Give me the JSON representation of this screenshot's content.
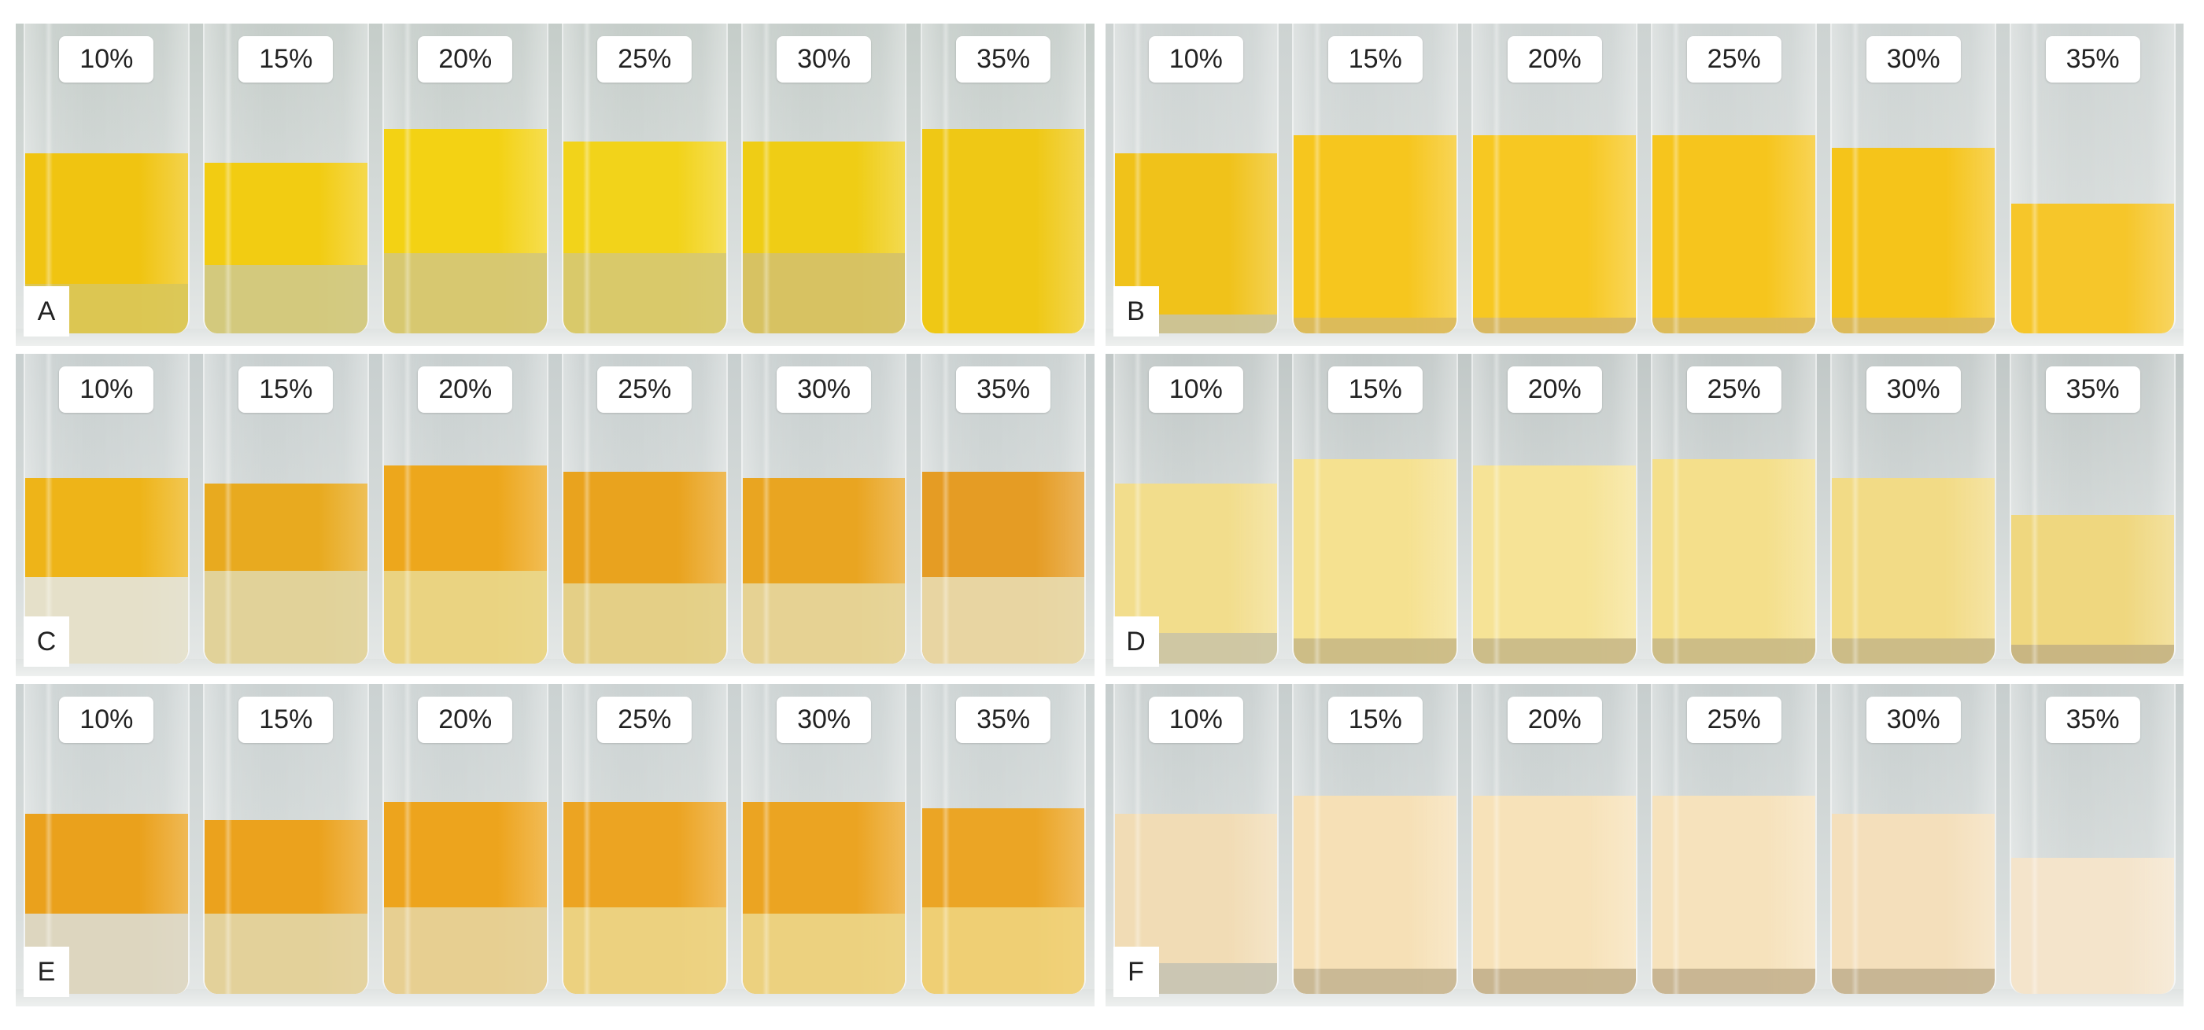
{
  "panels": [
    {
      "letter": "A",
      "bg": "#c5cdc9",
      "vials": [
        {
          "label": "10%",
          "liquid": "#f0c411",
          "sediment": "#d9c75a",
          "liquid_frac": 0.58,
          "sediment_frac": 0.16
        },
        {
          "label": "15%",
          "liquid": "#f2cc12",
          "sediment": "#cfc98a",
          "liquid_frac": 0.55,
          "sediment_frac": 0.22
        },
        {
          "label": "20%",
          "liquid": "#f3d214",
          "sediment": "#d4c77a",
          "liquid_frac": 0.66,
          "sediment_frac": 0.26
        },
        {
          "label": "25%",
          "liquid": "#f2d31a",
          "sediment": "#d6c873",
          "liquid_frac": 0.62,
          "sediment_frac": 0.26
        },
        {
          "label": "30%",
          "liquid": "#efcd15",
          "sediment": "#d4c16a",
          "liquid_frac": 0.62,
          "sediment_frac": 0.26
        },
        {
          "label": "35%",
          "liquid": "#efc815",
          "sediment": "#e6c63a",
          "liquid_frac": 0.66,
          "sediment_frac": 0.0
        }
      ]
    },
    {
      "letter": "B",
      "bg": "#cdd3d2",
      "vials": [
        {
          "label": "10%",
          "liquid": "#f0c21a",
          "sediment": "#c9c3a0",
          "liquid_frac": 0.58,
          "sediment_frac": 0.06
        },
        {
          "label": "15%",
          "liquid": "#f6c61e",
          "sediment": "#d9b960",
          "liquid_frac": 0.64,
          "sediment_frac": 0.05
        },
        {
          "label": "20%",
          "liquid": "#f7c822",
          "sediment": "#d4b668",
          "liquid_frac": 0.64,
          "sediment_frac": 0.05
        },
        {
          "label": "25%",
          "liquid": "#f6c51d",
          "sediment": "#d9b960",
          "liquid_frac": 0.64,
          "sediment_frac": 0.05
        },
        {
          "label": "30%",
          "liquid": "#f5c41a",
          "sediment": "#d9b960",
          "liquid_frac": 0.6,
          "sediment_frac": 0.05
        },
        {
          "label": "35%",
          "liquid": "#f6c62a",
          "sediment": "#f1c02a",
          "liquid_frac": 0.42,
          "sediment_frac": 0.0
        }
      ]
    },
    {
      "letter": "C",
      "bg": "#c8cfcf",
      "vials": [
        {
          "label": "10%",
          "liquid": "#eeb418",
          "sediment": "#e3e4dd",
          "liquid_frac": 0.6,
          "sediment_frac": 0.28
        },
        {
          "label": "15%",
          "liquid": "#e8aa1f",
          "sediment": "#e0d6a6",
          "liquid_frac": 0.58,
          "sediment_frac": 0.3
        },
        {
          "label": "20%",
          "liquid": "#eda71c",
          "sediment": "#e9d88d",
          "liquid_frac": 0.64,
          "sediment_frac": 0.3
        },
        {
          "label": "25%",
          "liquid": "#e9a31e",
          "sediment": "#e3d491",
          "liquid_frac": 0.62,
          "sediment_frac": 0.26
        },
        {
          "label": "30%",
          "liquid": "#e9a521",
          "sediment": "#e6d7a0",
          "liquid_frac": 0.6,
          "sediment_frac": 0.26
        },
        {
          "label": "35%",
          "liquid": "#e59c24",
          "sediment": "#e8dbb0",
          "liquid_frac": 0.62,
          "sediment_frac": 0.28
        }
      ]
    },
    {
      "letter": "D",
      "bg": "#c1c8c7",
      "vials": [
        {
          "label": "10%",
          "liquid": "#f2dd8c",
          "sediment": "#cbc4a5",
          "liquid_frac": 0.58,
          "sediment_frac": 0.1
        },
        {
          "label": "15%",
          "liquid": "#f5e190",
          "sediment": "#c9b985",
          "liquid_frac": 0.66,
          "sediment_frac": 0.08
        },
        {
          "label": "20%",
          "liquid": "#f6e396",
          "sediment": "#c8b887",
          "liquid_frac": 0.64,
          "sediment_frac": 0.08
        },
        {
          "label": "25%",
          "liquid": "#f4df8b",
          "sediment": "#c9b985",
          "liquid_frac": 0.66,
          "sediment_frac": 0.08
        },
        {
          "label": "30%",
          "liquid": "#f2db86",
          "sediment": "#c8b887",
          "liquid_frac": 0.6,
          "sediment_frac": 0.08
        },
        {
          "label": "35%",
          "liquid": "#efd77f",
          "sediment": "#c4b383",
          "liquid_frac": 0.48,
          "sediment_frac": 0.06
        }
      ]
    },
    {
      "letter": "E",
      "bg": "#cbd2d2",
      "vials": [
        {
          "label": "10%",
          "liquid": "#eaa11c",
          "sediment": "#dcdbd1",
          "liquid_frac": 0.58,
          "sediment_frac": 0.26
        },
        {
          "label": "15%",
          "liquid": "#eba21d",
          "sediment": "#e2d6a8",
          "liquid_frac": 0.56,
          "sediment_frac": 0.26
        },
        {
          "label": "20%",
          "liquid": "#eda41d",
          "sediment": "#e5d49e",
          "liquid_frac": 0.62,
          "sediment_frac": 0.28
        },
        {
          "label": "25%",
          "liquid": "#eca422",
          "sediment": "#ecd68a",
          "liquid_frac": 0.62,
          "sediment_frac": 0.28
        },
        {
          "label": "30%",
          "liquid": "#eba422",
          "sediment": "#ecd68a",
          "liquid_frac": 0.62,
          "sediment_frac": 0.26
        },
        {
          "label": "35%",
          "liquid": "#eba525",
          "sediment": "#efd47d",
          "liquid_frac": 0.6,
          "sediment_frac": 0.28
        }
      ]
    },
    {
      "letter": "F",
      "bg": "#c7cece",
      "vials": [
        {
          "label": "10%",
          "liquid": "#f1dcb5",
          "sediment": "#c7c3b2",
          "liquid_frac": 0.58,
          "sediment_frac": 0.1
        },
        {
          "label": "15%",
          "liquid": "#f6e0b6",
          "sediment": "#c5b591",
          "liquid_frac": 0.64,
          "sediment_frac": 0.08
        },
        {
          "label": "20%",
          "liquid": "#f7e2b9",
          "sediment": "#c2b08c",
          "liquid_frac": 0.64,
          "sediment_frac": 0.08
        },
        {
          "label": "25%",
          "liquid": "#f6e2bc",
          "sediment": "#c4b18e",
          "liquid_frac": 0.64,
          "sediment_frac": 0.08
        },
        {
          "label": "30%",
          "liquid": "#f4dfbb",
          "sediment": "#c3b190",
          "liquid_frac": 0.58,
          "sediment_frac": 0.08
        },
        {
          "label": "35%",
          "liquid": "#f4e4cb",
          "sediment": "#efe0c5",
          "liquid_frac": 0.44,
          "sediment_frac": 0.0
        }
      ]
    }
  ]
}
